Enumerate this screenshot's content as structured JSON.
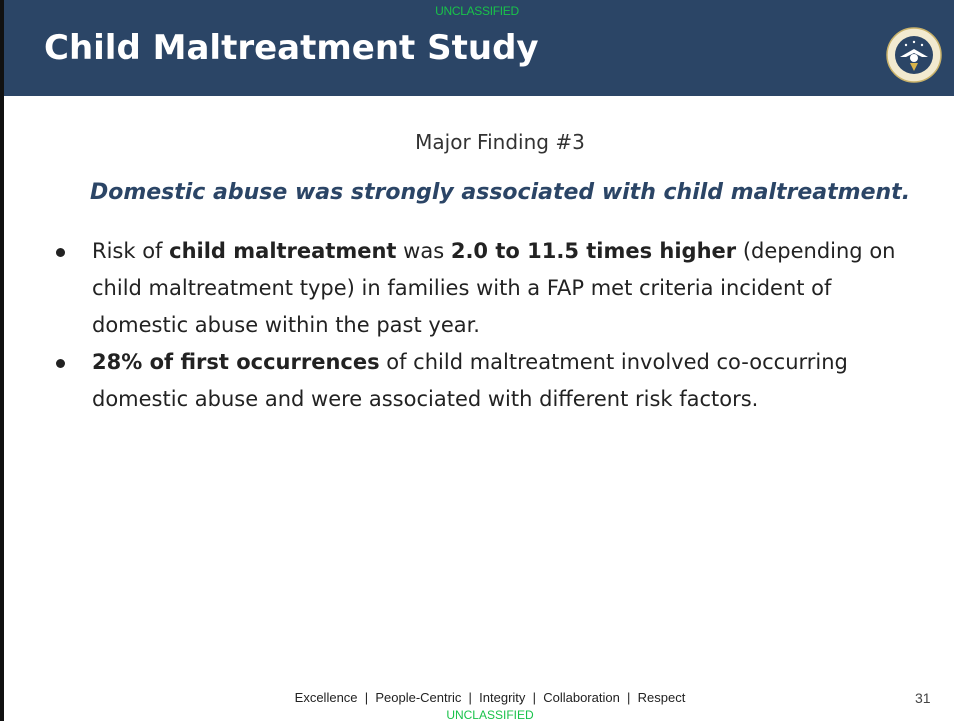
{
  "header": {
    "classification": "UNCLASSIFIED",
    "title": "Child Maltreatment Study"
  },
  "finding_label": "Major Finding #3",
  "headline": "Domestic abuse was strongly associated with child maltreatment.",
  "bullets": [
    {
      "parts": [
        "Risk of ",
        "child maltreatment",
        " was ",
        "2.0 to 11.5 times higher",
        " (depending on child maltreatment type) in families with a FAP met criteria incident of domestic abuse within the past year."
      ]
    },
    {
      "parts": [
        "28% of first occurrences",
        " of child maltreatment involved co-occurring domestic abuse and were associated with different risk factors."
      ]
    }
  ],
  "footer": {
    "values": "Excellence  |  People-Centric  |  Integrity  |  Collaboration  |  Respect",
    "page_number": "31",
    "classification": "UNCLASSIFIED"
  }
}
